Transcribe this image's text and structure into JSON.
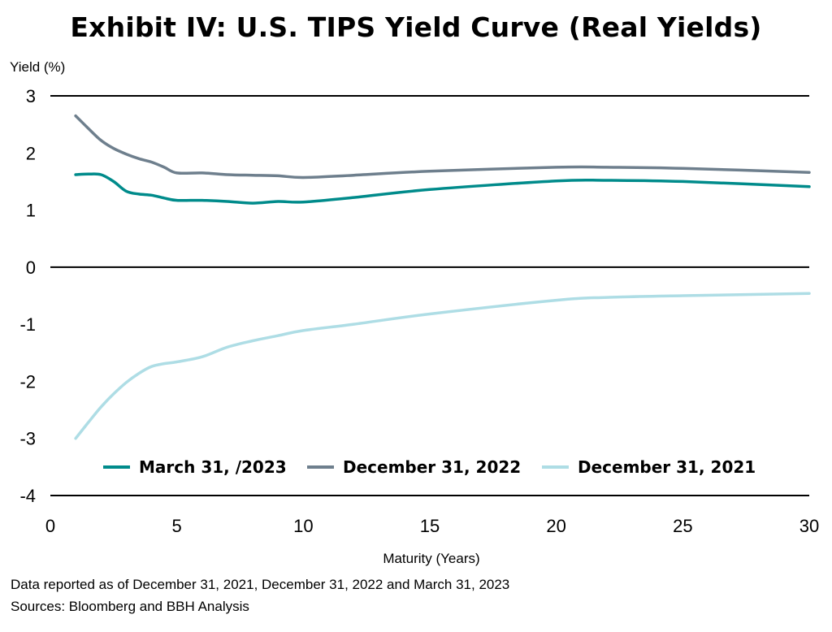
{
  "chart_data": {
    "type": "line",
    "title": "Exhibit IV: U.S. TIPS Yield Curve (Real Yields)",
    "ylabel": "Yield (%)",
    "xlabel": "Maturity (Years)",
    "xlim": [
      0,
      30
    ],
    "ylim": [
      -4,
      3
    ],
    "xticks": [
      0,
      5,
      10,
      15,
      20,
      25,
      30
    ],
    "yticks": [
      3,
      2,
      1,
      0,
      -1,
      -2,
      -3,
      -4
    ],
    "legend_position": "bottom-inside",
    "series": [
      {
        "name": "March 31, /2023",
        "color": "#008b8b",
        "x": [
          1,
          1.5,
          2,
          2.5,
          3,
          3.5,
          4,
          4.5,
          5,
          6,
          7,
          8,
          9,
          10,
          12,
          15,
          20,
          22,
          25,
          30
        ],
        "y": [
          1.62,
          1.63,
          1.62,
          1.5,
          1.33,
          1.28,
          1.26,
          1.21,
          1.17,
          1.17,
          1.15,
          1.12,
          1.15,
          1.14,
          1.22,
          1.36,
          1.51,
          1.52,
          1.5,
          1.41
        ]
      },
      {
        "name": "December 31, 2022",
        "color": "#6e7f8d",
        "x": [
          1,
          1.5,
          2,
          2.5,
          3,
          3.5,
          4,
          4.5,
          5,
          6,
          7,
          8,
          9,
          10,
          12,
          15,
          20,
          22,
          25,
          30
        ],
        "y": [
          2.65,
          2.43,
          2.22,
          2.08,
          1.98,
          1.9,
          1.84,
          1.75,
          1.65,
          1.65,
          1.62,
          1.61,
          1.6,
          1.57,
          1.61,
          1.68,
          1.75,
          1.75,
          1.73,
          1.66
        ]
      },
      {
        "name": "December 31, 2021",
        "color": "#aedde5",
        "x": [
          1,
          1.5,
          2,
          2.5,
          3,
          3.5,
          4,
          4.5,
          5,
          6,
          7,
          8,
          9,
          10,
          12,
          15,
          20,
          22,
          25,
          30
        ],
        "y": [
          -3.0,
          -2.72,
          -2.45,
          -2.22,
          -2.02,
          -1.86,
          -1.74,
          -1.69,
          -1.66,
          -1.57,
          -1.4,
          -1.29,
          -1.2,
          -1.11,
          -1.0,
          -0.82,
          -0.58,
          -0.53,
          -0.5,
          -0.46
        ]
      }
    ]
  },
  "footer": {
    "note": "Data reported as of December 31, 2021, December 31, 2022 and March 31, 2023",
    "sources": "Sources: Bloomberg and BBH Analysis"
  }
}
